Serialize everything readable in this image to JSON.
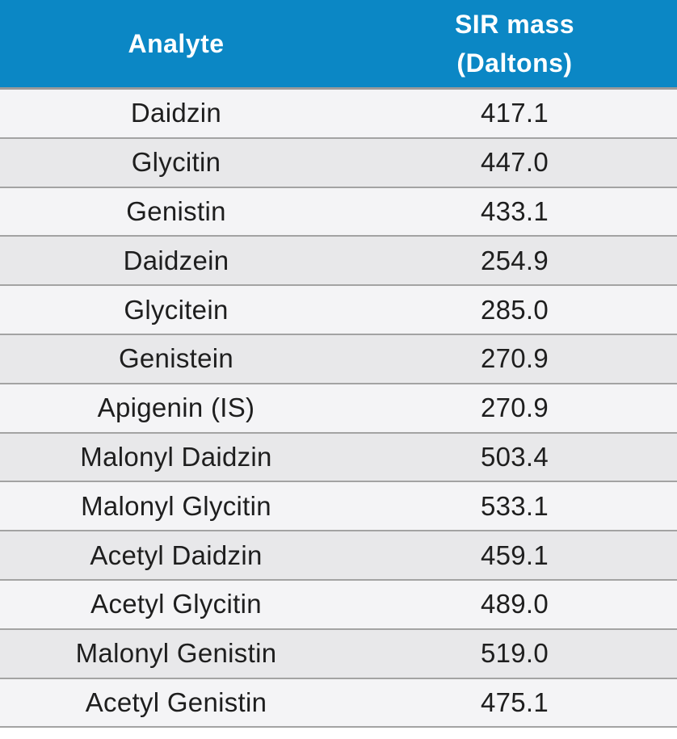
{
  "header": {
    "analyte": "Analyte",
    "mass_line1": "SIR mass",
    "mass_line2": "(Daltons)"
  },
  "colors": {
    "header_bg": "#0b87c5",
    "header_text": "#ffffff",
    "row_light": "#f4f4f6",
    "row_dark": "#e8e8ea",
    "divider": "#a3a3a3"
  },
  "rows": [
    {
      "analyte": "Daidzin",
      "mass": "417.1"
    },
    {
      "analyte": "Glycitin",
      "mass": "447.0"
    },
    {
      "analyte": "Genistin",
      "mass": "433.1"
    },
    {
      "analyte": "Daidzein",
      "mass": "254.9"
    },
    {
      "analyte": "Glycitein",
      "mass": "285.0"
    },
    {
      "analyte": "Genistein",
      "mass": "270.9"
    },
    {
      "analyte": "Apigenin (IS)",
      "mass": "270.9"
    },
    {
      "analyte": "Malonyl Daidzin",
      "mass": "503.4"
    },
    {
      "analyte": "Malonyl Glycitin",
      "mass": "533.1"
    },
    {
      "analyte": "Acetyl Daidzin",
      "mass": "459.1"
    },
    {
      "analyte": "Acetyl Glycitin",
      "mass": "489.0"
    },
    {
      "analyte": "Malonyl Genistin",
      "mass": "519.0"
    },
    {
      "analyte": "Acetyl Genistin",
      "mass": "475.1"
    }
  ]
}
